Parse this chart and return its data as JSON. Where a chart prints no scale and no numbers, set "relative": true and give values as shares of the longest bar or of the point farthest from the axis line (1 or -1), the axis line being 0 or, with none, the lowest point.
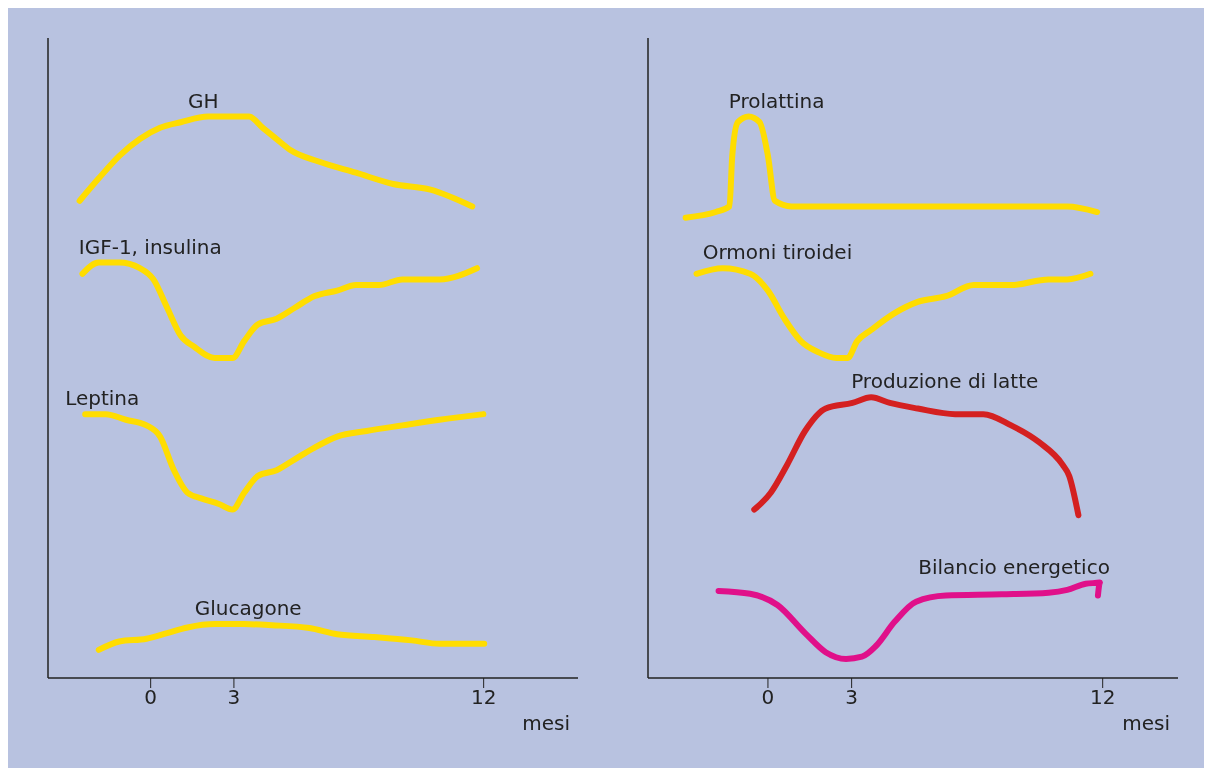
{
  "chart_data": [
    {
      "type": "line",
      "relative": true,
      "xlabel": "mesi",
      "xlim": [
        -3.7,
        15.4
      ],
      "xticks": [
        0,
        3,
        12
      ],
      "grid": false,
      "legend": false,
      "marker": "none",
      "line_style": "solid",
      "series": [
        {
          "name": "GH",
          "color": "#ffdd00",
          "x": [
            -2.56,
            -1.87,
            -1.13,
            -0.39,
            0.34,
            1.08,
            2.07,
            3,
            3.54,
            4.04,
            4.54,
            5.05,
            6.05,
            7.4,
            8.74,
            10.08,
            11.59
          ],
          "values": [
            0.85,
            0.89,
            0.93,
            0.96,
            0.98,
            0.99,
            1.0,
            1.0,
            1.0,
            0.98,
            0.96,
            0.94,
            0.92,
            0.9,
            0.88,
            0.87,
            0.84
          ]
        },
        {
          "name": "IGF-1, insulina",
          "color": "#ffdd00",
          "x": [
            -2.46,
            -1.87,
            -1.13,
            -0.39,
            0.1,
            0.59,
            1.08,
            1.57,
            2.31,
            2.95,
            3.37,
            3.87,
            4.54,
            5.21,
            5.89,
            6.72,
            7.4,
            8.23,
            9.07,
            10.41,
            11.76
          ],
          "values": [
            0.72,
            0.74,
            0.74,
            0.73,
            0.71,
            0.66,
            0.61,
            0.59,
            0.57,
            0.57,
            0.6,
            0.63,
            0.64,
            0.66,
            0.68,
            0.69,
            0.7,
            0.7,
            0.71,
            0.71,
            0.73
          ]
        },
        {
          "name": "Leptina",
          "color": "#ffdd00",
          "x": [
            -2.36,
            -1.62,
            -0.89,
            -0.15,
            0.34,
            0.84,
            1.33,
            1.82,
            2.46,
            2.95,
            3.37,
            3.87,
            4.54,
            5.21,
            5.89,
            6.72,
            7.78,
            9.07,
            10.41,
            11.99
          ],
          "values": [
            0.47,
            0.47,
            0.46,
            0.45,
            0.43,
            0.37,
            0.33,
            0.32,
            0.31,
            0.3,
            0.33,
            0.36,
            0.37,
            0.39,
            0.41,
            0.43,
            0.44,
            0.45,
            0.46,
            0.47
          ]
        },
        {
          "name": "Glucagone",
          "color": "#ffdd00",
          "x": [
            -1.87,
            -1.13,
            -0.15,
            0.59,
            1.33,
            2.31,
            3.37,
            4.38,
            5.72,
            6.72,
            8.07,
            9.41,
            10.41,
            12.02
          ],
          "values": [
            0.05,
            0.065,
            0.07,
            0.08,
            0.09,
            0.096,
            0.096,
            0.094,
            0.089,
            0.078,
            0.073,
            0.067,
            0.061,
            0.061
          ]
        }
      ]
    },
    {
      "type": "line",
      "relative": true,
      "xlabel": "mesi",
      "xlim": [
        -4.3,
        14.7
      ],
      "xticks": [
        0,
        3,
        12
      ],
      "grid": false,
      "legend": false,
      "marker": "none",
      "line_style": "solid",
      "series": [
        {
          "name": "Prolattina",
          "color": "#ffdd00",
          "x": [
            -2.95,
            -1.87,
            -1.38,
            -1.28,
            -1.08,
            -0.69,
            -0.3,
            0,
            0.25,
            0.84,
            3.03,
            4.71,
            8.05,
            10.73,
            11.8
          ],
          "values": [
            0.82,
            0.83,
            0.84,
            0.93,
            0.99,
            1.0,
            0.99,
            0.93,
            0.85,
            0.84,
            0.84,
            0.84,
            0.84,
            0.84,
            0.83
          ]
        },
        {
          "name": "Ormoni tiroidei",
          "color": "#ffdd00",
          "x": [
            -2.56,
            -1.62,
            -0.64,
            0,
            0.59,
            1.18,
            1.82,
            2.46,
            2.85,
            3.2,
            3.7,
            4.54,
            5.37,
            6.38,
            7.38,
            8.72,
            10.06,
            10.73,
            11.56
          ],
          "values": [
            0.72,
            0.73,
            0.72,
            0.69,
            0.64,
            0.6,
            0.58,
            0.57,
            0.57,
            0.6,
            0.62,
            0.65,
            0.67,
            0.68,
            0.7,
            0.7,
            0.71,
            0.71,
            0.72
          ]
        },
        {
          "name": "Produzione di latte",
          "color": "#d42020",
          "x": [
            -0.49,
            0.1,
            0.69,
            1.33,
            2.07,
            3.03,
            3.7,
            4.37,
            5.37,
            6.71,
            7.72,
            8.72,
            9.72,
            10.56,
            10.8,
            11.13
          ],
          "values": [
            0.3,
            0.33,
            0.38,
            0.44,
            0.48,
            0.49,
            0.5,
            0.49,
            0.48,
            0.47,
            0.47,
            0.45,
            0.42,
            0.38,
            0.36,
            0.29
          ]
        },
        {
          "name": "Bilancio energetico",
          "color": "#e0108a",
          "x": [
            -1.77,
            -0.64,
            0.34,
            1.33,
            2.07,
            2.8,
            3.37,
            3.87,
            4.54,
            5.31,
            6.38,
            8.38,
            10.06,
            10.73,
            11.39,
            11.9,
            11.83
          ],
          "values": [
            0.155,
            0.15,
            0.13,
            0.08,
            0.046,
            0.034,
            0.038,
            0.057,
            0.1,
            0.136,
            0.147,
            0.149,
            0.152,
            0.157,
            0.168,
            0.17,
            0.147
          ]
        }
      ]
    }
  ]
}
